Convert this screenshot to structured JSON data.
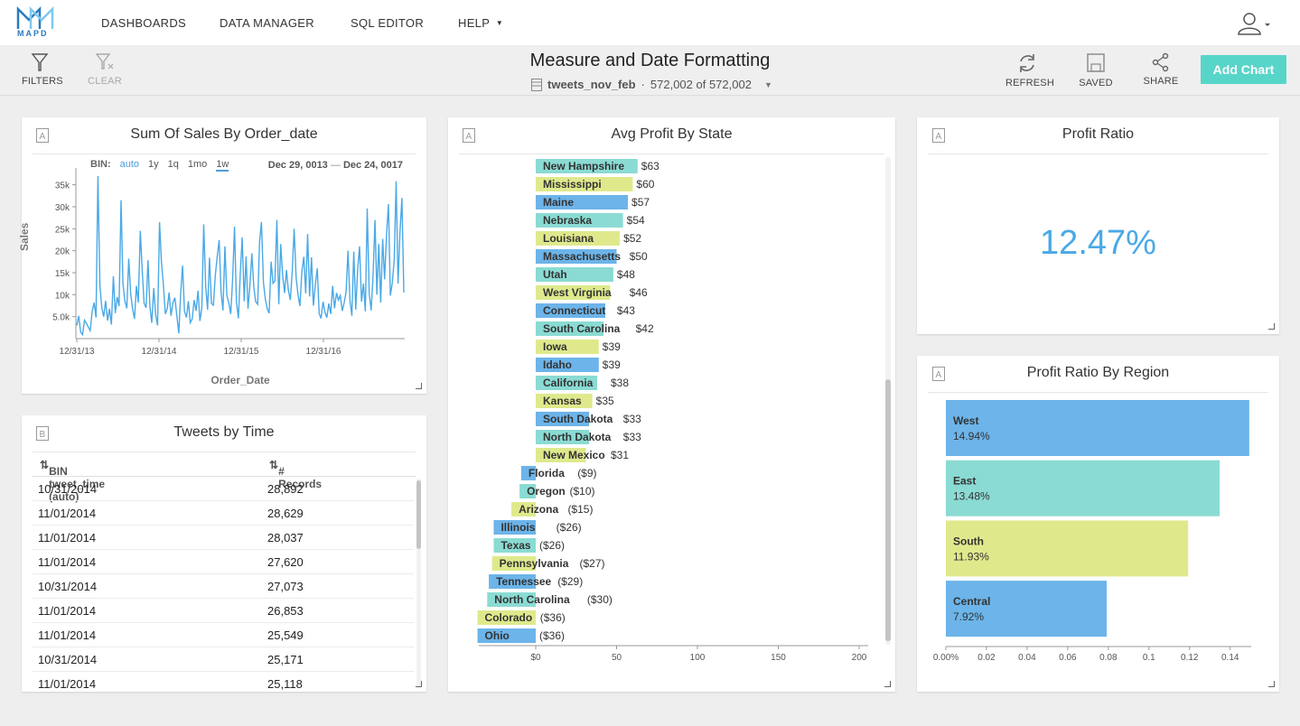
{
  "nav": {
    "logo_text": "MAPD",
    "items": [
      "DASHBOARDS",
      "DATA MANAGER",
      "SQL EDITOR",
      "HELP"
    ]
  },
  "toolbar": {
    "filters": "FILTERS",
    "clear": "CLEAR",
    "refresh": "REFRESH",
    "saved": "SAVED",
    "share": "SHARE",
    "add_chart": "Add Chart"
  },
  "dashboard": {
    "title": "Measure and Date Formatting",
    "table": "tweets_nov_feb",
    "dot": "·",
    "count": "572,002 of 572,002"
  },
  "colors": {
    "blue": "#6cb4e9",
    "teal": "#8adbd3",
    "yellow": "#dfe98c",
    "accent": "#58d5c9",
    "line": "#4aa9e6"
  },
  "line_chart": {
    "title": "Sum Of Sales By Order_date",
    "bin_label": "BIN:",
    "bins": [
      "auto",
      "1y",
      "1q",
      "1mo",
      "1w"
    ],
    "date_start": "Dec 29, 0013",
    "date_sep": "—",
    "date_end": "Dec 24, 0017",
    "xlabel": "Order_Date",
    "ylabel": "Sales"
  },
  "table_panel": {
    "title": "Tweets by Time",
    "col1": "BIN tweet_time (auto)",
    "col2": "# Records",
    "rows": [
      [
        "10/31/2014",
        "28,892"
      ],
      [
        "11/01/2014",
        "28,629"
      ],
      [
        "11/01/2014",
        "28,037"
      ],
      [
        "11/01/2014",
        "27,620"
      ],
      [
        "10/31/2014",
        "27,073"
      ],
      [
        "11/01/2014",
        "26,853"
      ],
      [
        "11/01/2014",
        "25,549"
      ],
      [
        "10/31/2014",
        "25,171"
      ],
      [
        "11/01/2014",
        "25,118"
      ]
    ]
  },
  "bar_panel": {
    "title": "Avg Profit By State"
  },
  "number_panel": {
    "title": "Profit Ratio",
    "value": "12.47%"
  },
  "region_panel": {
    "title": "Profit Ratio By Region"
  },
  "chart_data": [
    {
      "type": "line",
      "title": "Sum Of Sales By Order_date",
      "xlabel": "Order_Date",
      "ylabel": "Sales",
      "x_tick_labels": [
        "12/31/13",
        "12/31/14",
        "12/31/15",
        "12/31/16"
      ],
      "y_tick_labels": [
        "5.0k",
        "10k",
        "15k",
        "20k",
        "25k",
        "30k",
        "35k"
      ],
      "ylim": [
        0,
        38000
      ],
      "x_range": [
        "12/31/13",
        "12/24/17"
      ],
      "series": [
        {
          "values": [
            3000,
            5200,
            1500,
            900,
            4200,
            3500,
            2600,
            1800,
            6200,
            8200,
            4800,
            37000,
            12000,
            7000,
            5000,
            8600,
            4100,
            6800,
            3200,
            14200,
            5800,
            9500,
            7400,
            31500,
            12500,
            8600,
            6900,
            18200,
            10400,
            6700,
            4500,
            12000,
            8200,
            24500,
            15600,
            8100,
            7000,
            17800,
            7400,
            3600,
            11500,
            5400,
            3000,
            26500,
            17400,
            12400,
            5600,
            6800,
            10500,
            5200,
            8200,
            9300,
            5300,
            1200,
            10200,
            16600,
            6200,
            4800,
            8500,
            3600,
            4500,
            8800,
            6300,
            10900,
            4000,
            7000,
            26000,
            11800,
            6600,
            18400,
            8000,
            7600,
            14300,
            18600,
            22400,
            10600,
            6400,
            21000,
            9800,
            8200,
            5600,
            13500,
            25500,
            8400,
            4600,
            14900,
            23000,
            8500,
            18700,
            6800,
            12000,
            19400,
            11800,
            8400,
            7800,
            22000,
            26500,
            12800,
            9000,
            6800,
            5800,
            17500,
            12600,
            13100,
            27000,
            7800,
            21500,
            14600,
            10400,
            15600,
            11000,
            8800,
            15400,
            25000,
            13800,
            10000,
            7400,
            15100,
            18600,
            10300,
            23800,
            9600,
            18500,
            7500,
            12200,
            16000,
            5700,
            4600,
            8400,
            6000,
            4800,
            8000,
            5600,
            12000,
            6900,
            10400,
            8800,
            9800,
            6300,
            8200,
            10600,
            20000,
            8600,
            5200,
            19800,
            6600,
            15700,
            21000,
            8400,
            12500,
            6200,
            29600,
            10300,
            6400,
            14100,
            27000,
            10000,
            21500,
            8200,
            22700,
            13500,
            23400,
            30600,
            9800,
            12600,
            18000,
            35800,
            12500,
            24000,
            32000,
            10500
          ]
        }
      ]
    },
    {
      "type": "bar",
      "orientation": "horizontal",
      "title": "Avg Profit By State",
      "x_tick_labels": [
        "$0",
        "50",
        "100",
        "150",
        "200"
      ],
      "categories": [
        "New Hampshire",
        "Mississippi",
        "Maine",
        "Nebraska",
        "Louisiana",
        "Massachusetts",
        "Utah",
        "West Virginia",
        "Connecticut",
        "South Carolina",
        "Iowa",
        "Idaho",
        "California",
        "Kansas",
        "South Dakota",
        "North Dakota",
        "New Mexico",
        "Florida",
        "Oregon",
        "Arizona",
        "Illinois",
        "Texas",
        "Pennsylvania",
        "Tennessee",
        "North Carolina",
        "Colorado",
        "Ohio"
      ],
      "values": [
        63,
        60,
        57,
        54,
        52,
        50,
        48,
        46,
        43,
        42,
        39,
        39,
        38,
        35,
        33,
        33,
        31,
        -9,
        -10,
        -15,
        -26,
        -26,
        -27,
        -29,
        -30,
        -36,
        -36
      ],
      "value_labels": [
        "$63",
        "$60",
        "$57",
        "$54",
        "$52",
        "$50",
        "$48",
        "$46",
        "$43",
        "$42",
        "$39",
        "$39",
        "$38",
        "$35",
        "$33",
        "$33",
        "$31",
        "($9)",
        "($10)",
        "($15)",
        "($26)",
        "($26)",
        "($27)",
        "($29)",
        "($30)",
        "($36)",
        "($36)"
      ],
      "bar_colors": [
        "teal",
        "yellow",
        "blue",
        "teal",
        "yellow",
        "blue",
        "teal",
        "yellow",
        "blue",
        "teal",
        "yellow",
        "blue",
        "teal",
        "yellow",
        "blue",
        "teal",
        "yellow",
        "blue",
        "teal",
        "yellow",
        "blue",
        "teal",
        "yellow",
        "blue",
        "teal",
        "yellow",
        "blue"
      ]
    },
    {
      "type": "bar",
      "orientation": "horizontal",
      "title": "Profit Ratio By Region",
      "x_tick_labels": [
        "0.00%",
        "0.02",
        "0.04",
        "0.06",
        "0.08",
        "0.1",
        "0.12",
        "0.14"
      ],
      "categories": [
        "West",
        "East",
        "South",
        "Central"
      ],
      "values": [
        0.1494,
        0.1348,
        0.1193,
        0.0792
      ],
      "value_labels": [
        "14.94%",
        "13.48%",
        "11.93%",
        "7.92%"
      ],
      "bar_colors": [
        "blue",
        "teal",
        "yellow",
        "blue"
      ]
    }
  ]
}
